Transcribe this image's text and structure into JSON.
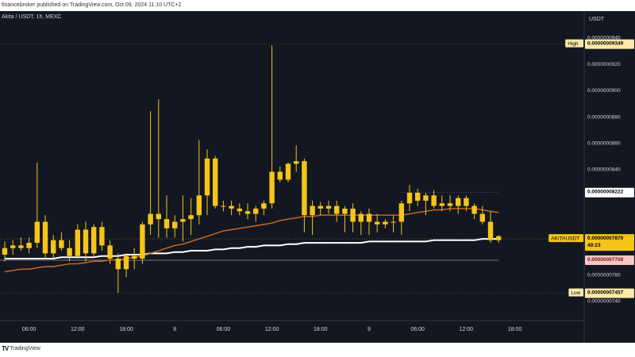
{
  "header": {
    "publish_line": "financebroker published on TradingView.com, Oct 09, 2024 11:10 UTC+2"
  },
  "symbol_line": "Akita / USDT, 1h, MEXC",
  "footer": {
    "logo_text": "TradingView"
  },
  "colors": {
    "background": "#131722",
    "candle": "#f5c518",
    "ma_fast": "#d2691e",
    "ma_slow": "#ffffff",
    "label_bg": "#ffe9a8",
    "label_last": "#f5c518",
    "label_red": "#f7c6c6",
    "grid": "#2a2e39"
  },
  "chart_data": {
    "type": "candlestick",
    "price_unit": "USDT",
    "y_ticks": [
      "0.0000000940",
      "0.0000000920",
      "0.0000000900",
      "0.0000000880",
      "0.0000000860",
      "0.0000000840",
      "0.0000000760",
      "0.0000000740"
    ],
    "y_tick_values": [
      9.4,
      9.2,
      9.0,
      8.8,
      8.6,
      8.4,
      7.6,
      7.4
    ],
    "y_scale_note": "values ×1e-8",
    "x_ticks": [
      {
        "label": "06:00",
        "index": 3
      },
      {
        "label": "12:00",
        "index": 9
      },
      {
        "label": "18:00",
        "index": 15
      },
      {
        "label": "8",
        "index": 21
      },
      {
        "label": "06:00",
        "index": 27
      },
      {
        "label": "12:00",
        "index": 33
      },
      {
        "label": "18:00",
        "index": 39
      },
      {
        "label": "9",
        "index": 45
      },
      {
        "label": "06:00",
        "index": 51
      },
      {
        "label": "12:00",
        "index": 57
      },
      {
        "label": "18:00",
        "index": 63
      }
    ],
    "ylim": [
      7.25,
      9.6
    ],
    "labels": {
      "high": {
        "text": "High",
        "value": "0.00000009349",
        "y": 9.349
      },
      "pivot": {
        "value": "0.00000008222",
        "y": 8.222
      },
      "last": {
        "symbol": "AKITAUSDT",
        "value": "0.00000007870",
        "countdown": "49:23",
        "y": 7.87
      },
      "red": {
        "value": "0.00000007708",
        "y": 7.708
      },
      "low": {
        "text": "Low",
        "value": "0.00000007457",
        "y": 7.457
      }
    },
    "candles": [
      [
        7.75,
        7.85,
        7.7,
        7.8
      ],
      [
        7.8,
        7.86,
        7.75,
        7.82
      ],
      [
        7.82,
        7.88,
        7.78,
        7.8
      ],
      [
        7.8,
        7.88,
        7.76,
        7.84
      ],
      [
        7.84,
        8.45,
        7.8,
        8.0
      ],
      [
        8.0,
        8.05,
        7.72,
        7.76
      ],
      [
        7.76,
        7.9,
        7.72,
        7.86
      ],
      [
        7.86,
        7.92,
        7.78,
        7.8
      ],
      [
        7.8,
        7.86,
        7.7,
        7.74
      ],
      [
        7.74,
        7.98,
        7.72,
        7.94
      ],
      [
        7.94,
        8.0,
        7.7,
        7.76
      ],
      [
        7.76,
        7.98,
        7.74,
        7.96
      ],
      [
        7.96,
        8.0,
        7.78,
        7.82
      ],
      [
        7.82,
        7.86,
        7.68,
        7.72
      ],
      [
        7.72,
        7.76,
        7.46,
        7.64
      ],
      [
        7.64,
        7.76,
        7.58,
        7.74
      ],
      [
        7.74,
        7.8,
        7.64,
        7.72
      ],
      [
        7.72,
        8.0,
        7.68,
        7.98
      ],
      [
        7.98,
        8.84,
        7.9,
        8.06
      ],
      [
        8.06,
        8.93,
        7.88,
        8.02
      ],
      [
        8.02,
        8.2,
        7.88,
        7.95
      ],
      [
        7.95,
        8.05,
        7.88,
        8.0
      ],
      [
        8.0,
        8.2,
        7.85,
        8.02
      ],
      [
        8.02,
        8.18,
        7.9,
        8.05
      ],
      [
        8.05,
        8.62,
        7.98,
        8.2
      ],
      [
        8.2,
        8.55,
        8.05,
        8.48
      ],
      [
        8.48,
        8.5,
        8.1,
        8.12
      ],
      [
        8.12,
        8.16,
        8.08,
        8.12
      ],
      [
        8.12,
        8.16,
        8.05,
        8.1
      ],
      [
        8.1,
        8.14,
        8.05,
        8.08
      ],
      [
        8.08,
        8.14,
        8.02,
        8.06
      ],
      [
        8.06,
        8.12,
        8.0,
        8.1
      ],
      [
        8.1,
        8.16,
        8.05,
        8.14
      ],
      [
        8.14,
        9.34,
        8.1,
        8.38
      ],
      [
        8.38,
        8.42,
        8.3,
        8.32
      ],
      [
        8.32,
        8.45,
        8.3,
        8.44
      ],
      [
        8.44,
        8.58,
        8.38,
        8.46
      ],
      [
        8.46,
        8.48,
        7.92,
        8.05
      ],
      [
        8.05,
        8.16,
        7.9,
        8.12
      ],
      [
        8.12,
        8.15,
        8.05,
        8.1
      ],
      [
        8.1,
        8.16,
        8.06,
        8.12
      ],
      [
        8.12,
        8.16,
        8.0,
        8.06
      ],
      [
        8.06,
        8.12,
        7.92,
        8.1
      ],
      [
        8.1,
        8.14,
        7.92,
        8.0
      ],
      [
        8.0,
        8.08,
        7.9,
        8.06
      ],
      [
        8.06,
        8.1,
        7.9,
        8.0
      ],
      [
        8.0,
        8.06,
        7.92,
        7.98
      ],
      [
        7.98,
        8.02,
        7.95,
        8.0
      ],
      [
        8.0,
        8.05,
        7.92,
        8.0
      ],
      [
        8.0,
        8.16,
        7.9,
        8.14
      ],
      [
        8.14,
        8.28,
        8.08,
        8.22
      ],
      [
        8.22,
        8.25,
        8.12,
        8.16
      ],
      [
        8.16,
        8.22,
        8.05,
        8.2
      ],
      [
        8.2,
        8.24,
        8.1,
        8.12
      ],
      [
        8.12,
        8.2,
        8.08,
        8.14
      ],
      [
        8.14,
        8.2,
        8.08,
        8.12
      ],
      [
        8.12,
        8.2,
        8.06,
        8.18
      ],
      [
        8.18,
        8.2,
        8.08,
        8.12
      ],
      [
        8.12,
        8.14,
        8.02,
        8.06
      ],
      [
        8.06,
        8.12,
        7.98,
        8.0
      ],
      [
        8.0,
        8.08,
        7.84,
        7.86
      ],
      [
        7.86,
        7.9,
        7.84,
        7.89
      ]
    ],
    "ma_fast": [
      7.62,
      7.63,
      7.64,
      7.64,
      7.65,
      7.66,
      7.66,
      7.67,
      7.68,
      7.68,
      7.69,
      7.7,
      7.7,
      7.71,
      7.71,
      7.72,
      7.73,
      7.74,
      7.76,
      7.78,
      7.8,
      7.82,
      7.83,
      7.85,
      7.87,
      7.89,
      7.91,
      7.93,
      7.94,
      7.95,
      7.96,
      7.97,
      7.98,
      7.99,
      8.01,
      8.02,
      8.03,
      8.04,
      8.04,
      8.05,
      8.05,
      8.05,
      8.05,
      8.05,
      8.05,
      8.05,
      8.05,
      8.05,
      8.05,
      8.05,
      8.06,
      8.07,
      8.08,
      8.09,
      8.09,
      8.1,
      8.1,
      8.1,
      8.1,
      8.09,
      8.08,
      8.07
    ],
    "ma_slow": [
      7.72,
      7.72,
      7.72,
      7.72,
      7.72,
      7.72,
      7.72,
      7.73,
      7.73,
      7.73,
      7.73,
      7.73,
      7.74,
      7.74,
      7.74,
      7.75,
      7.75,
      7.75,
      7.76,
      7.76,
      7.76,
      7.77,
      7.77,
      7.78,
      7.78,
      7.78,
      7.79,
      7.79,
      7.8,
      7.8,
      7.81,
      7.81,
      7.82,
      7.82,
      7.82,
      7.83,
      7.83,
      7.84,
      7.84,
      7.84,
      7.84,
      7.84,
      7.84,
      7.84,
      7.84,
      7.85,
      7.85,
      7.85,
      7.85,
      7.85,
      7.85,
      7.85,
      7.85,
      7.86,
      7.86,
      7.86,
      7.86,
      7.86,
      7.86,
      7.87,
      7.87,
      7.87
    ]
  }
}
